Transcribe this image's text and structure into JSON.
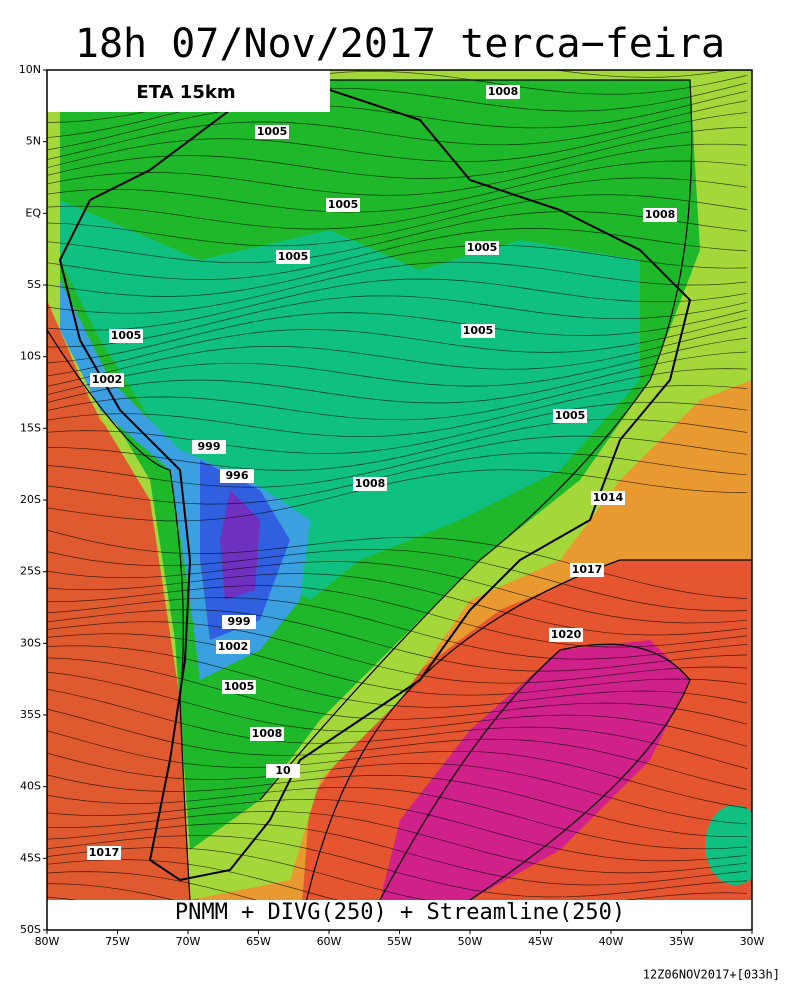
{
  "header": {
    "title": "18h 07/Nov/2017 terca−feira",
    "model": "ETA 15km"
  },
  "map": {
    "lat_labels": [
      "10N",
      "5N",
      "EQ",
      "5S",
      "10S",
      "15S",
      "20S",
      "25S",
      "30S",
      "35S",
      "40S",
      "45S",
      "50S"
    ],
    "lon_labels": [
      "80W",
      "75W",
      "70W",
      "65W",
      "60W",
      "55W",
      "50W",
      "45W",
      "40W",
      "35W",
      "30W"
    ],
    "contour_labels": [
      "1008",
      "1005",
      "1005",
      "1008",
      "1005",
      "1005",
      "1005",
      "1005",
      "1002",
      "1005",
      "999",
      "996",
      "1008",
      "1014",
      "1017",
      "999",
      "1020",
      "1002",
      "1005",
      "1008",
      "10",
      "1017"
    ]
  },
  "footer": {
    "caption": "PNMM + DIVG(250) + Streamline(250)",
    "timestamp": "12Z06NOV2017+[033h]"
  }
}
